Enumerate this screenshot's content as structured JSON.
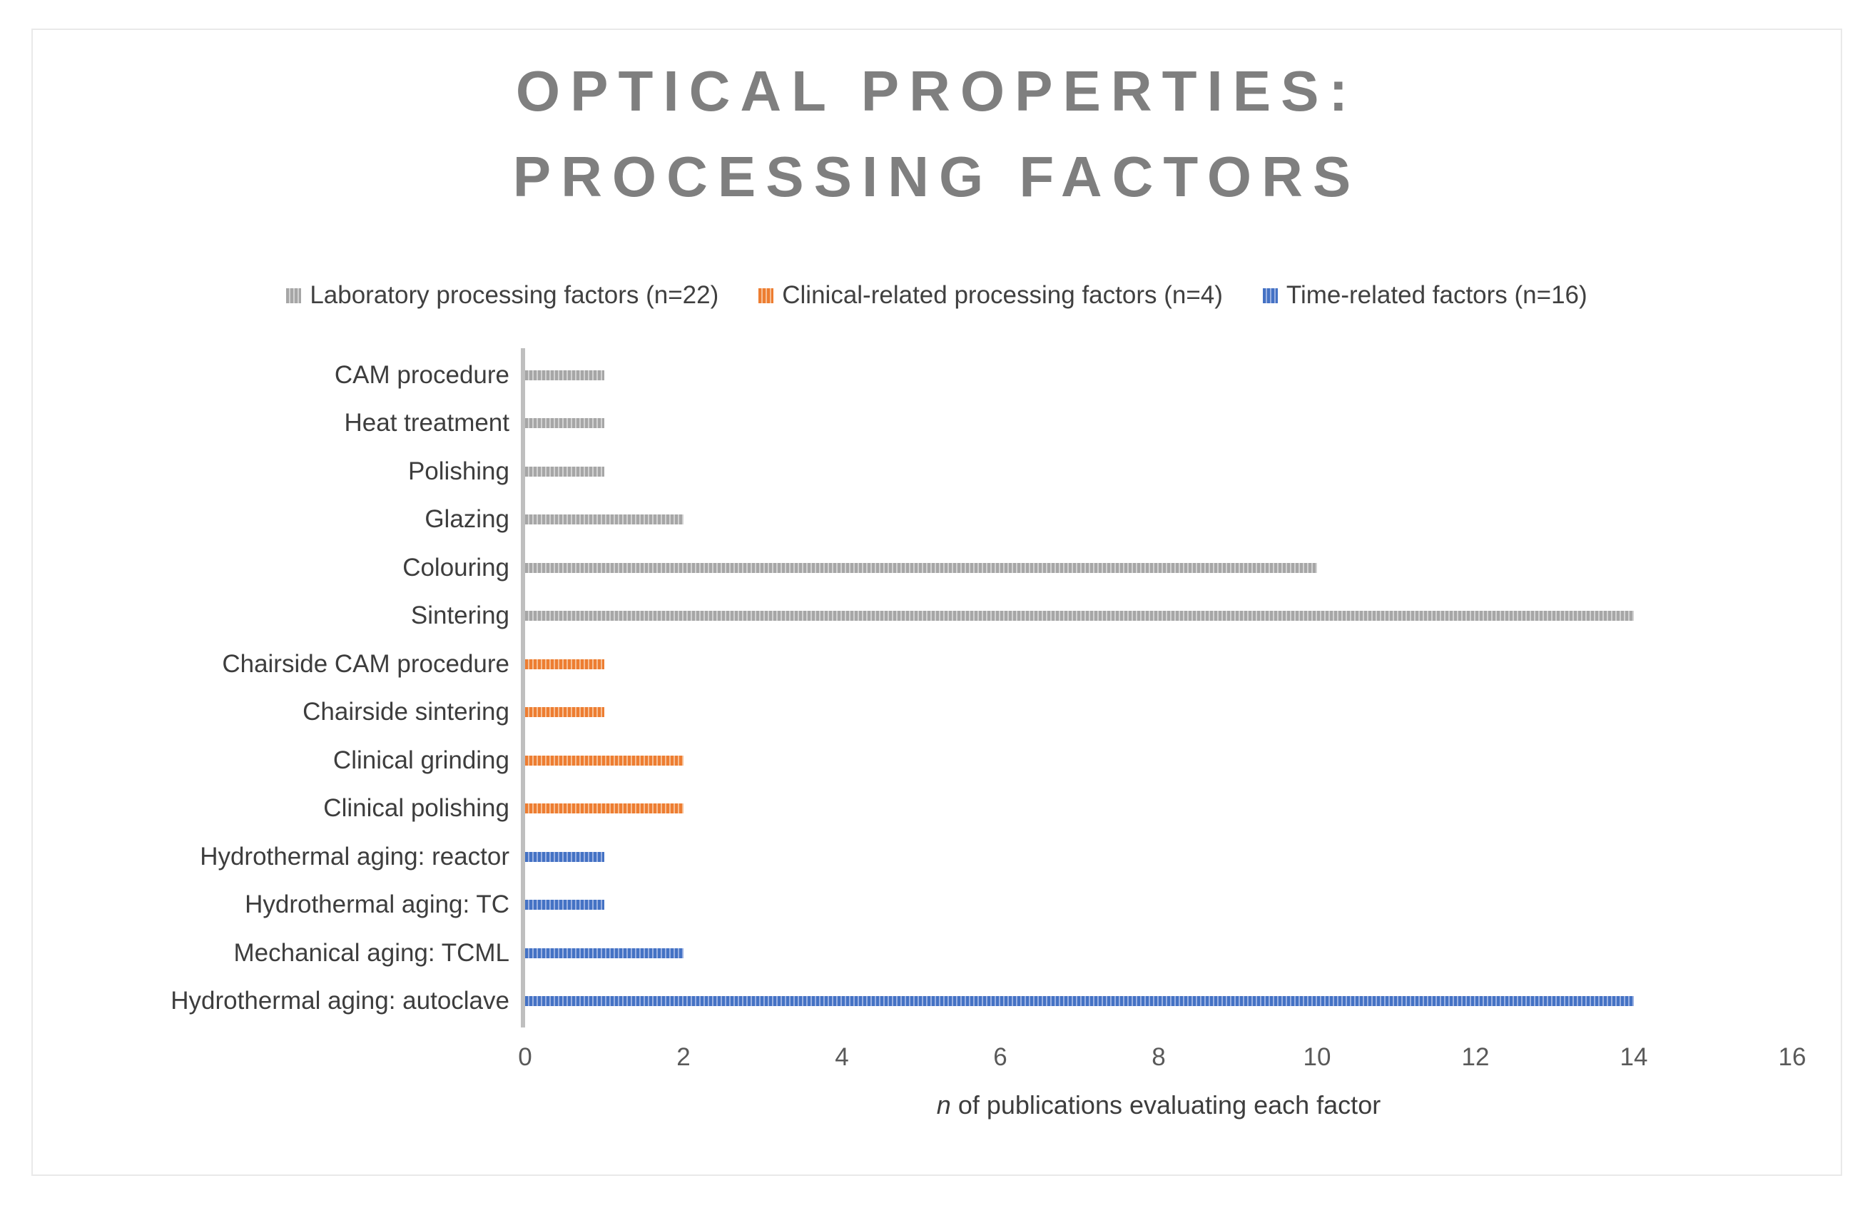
{
  "colors": {
    "laboratory": {
      "main": "#a6a6a6",
      "light": "#d2d2d2"
    },
    "clinical": {
      "main": "#ed7d31",
      "light": "#f6bf95"
    },
    "time": {
      "main": "#4472c4",
      "light": "#9ab1e2"
    },
    "axis_line": "#bfbfbf",
    "title_text": "#7f7f7f",
    "category_text": "#3d3d3d",
    "tick_text": "#595959",
    "frame_border": "#e9e9e9"
  },
  "chart_data": {
    "type": "bar",
    "orientation": "horizontal",
    "title": "OPTICAL PROPERTIES: PROCESSING FACTORS",
    "title_lines": [
      "OPTICAL PROPERTIES:",
      "PROCESSING FACTORS"
    ],
    "xlabel": "n of publications evaluating each factor",
    "xlabel_parts": {
      "italic": "n",
      "rest": " of publications evaluating each factor"
    },
    "xlim": [
      0,
      16
    ],
    "xticks": [
      0,
      2,
      4,
      6,
      8,
      10,
      12,
      14,
      16
    ],
    "grid": false,
    "legend_position": "top",
    "legend": [
      {
        "name": "Laboratory processing factors (n=22)",
        "series_key": "laboratory",
        "color": "#a6a6a6"
      },
      {
        "name": "Clinical-related processing factors (n=4)",
        "series_key": "clinical",
        "color": "#ed7d31"
      },
      {
        "name": "Time-related factors (n=16)",
        "series_key": "time",
        "color": "#4472c4"
      }
    ],
    "bars": [
      {
        "category": "CAM procedure",
        "value": 1,
        "series_key": "laboratory"
      },
      {
        "category": "Heat treatment",
        "value": 1,
        "series_key": "laboratory"
      },
      {
        "category": "Polishing",
        "value": 1,
        "series_key": "laboratory"
      },
      {
        "category": "Glazing",
        "value": 2,
        "series_key": "laboratory"
      },
      {
        "category": "Colouring",
        "value": 10,
        "series_key": "laboratory"
      },
      {
        "category": "Sintering",
        "value": 14,
        "series_key": "laboratory"
      },
      {
        "category": "Chairside CAM procedure",
        "value": 1,
        "series_key": "clinical"
      },
      {
        "category": "Chairside sintering",
        "value": 1,
        "series_key": "clinical"
      },
      {
        "category": "Clinical grinding",
        "value": 2,
        "series_key": "clinical"
      },
      {
        "category": "Clinical polishing",
        "value": 2,
        "series_key": "clinical"
      },
      {
        "category": "Hydrothermal aging: reactor",
        "value": 1,
        "series_key": "time"
      },
      {
        "category": "Hydrothermal aging: TC",
        "value": 1,
        "series_key": "time"
      },
      {
        "category": "Mechanical aging: TCML",
        "value": 2,
        "series_key": "time"
      },
      {
        "category": "Hydrothermal aging: autoclave",
        "value": 14,
        "series_key": "time"
      }
    ]
  }
}
